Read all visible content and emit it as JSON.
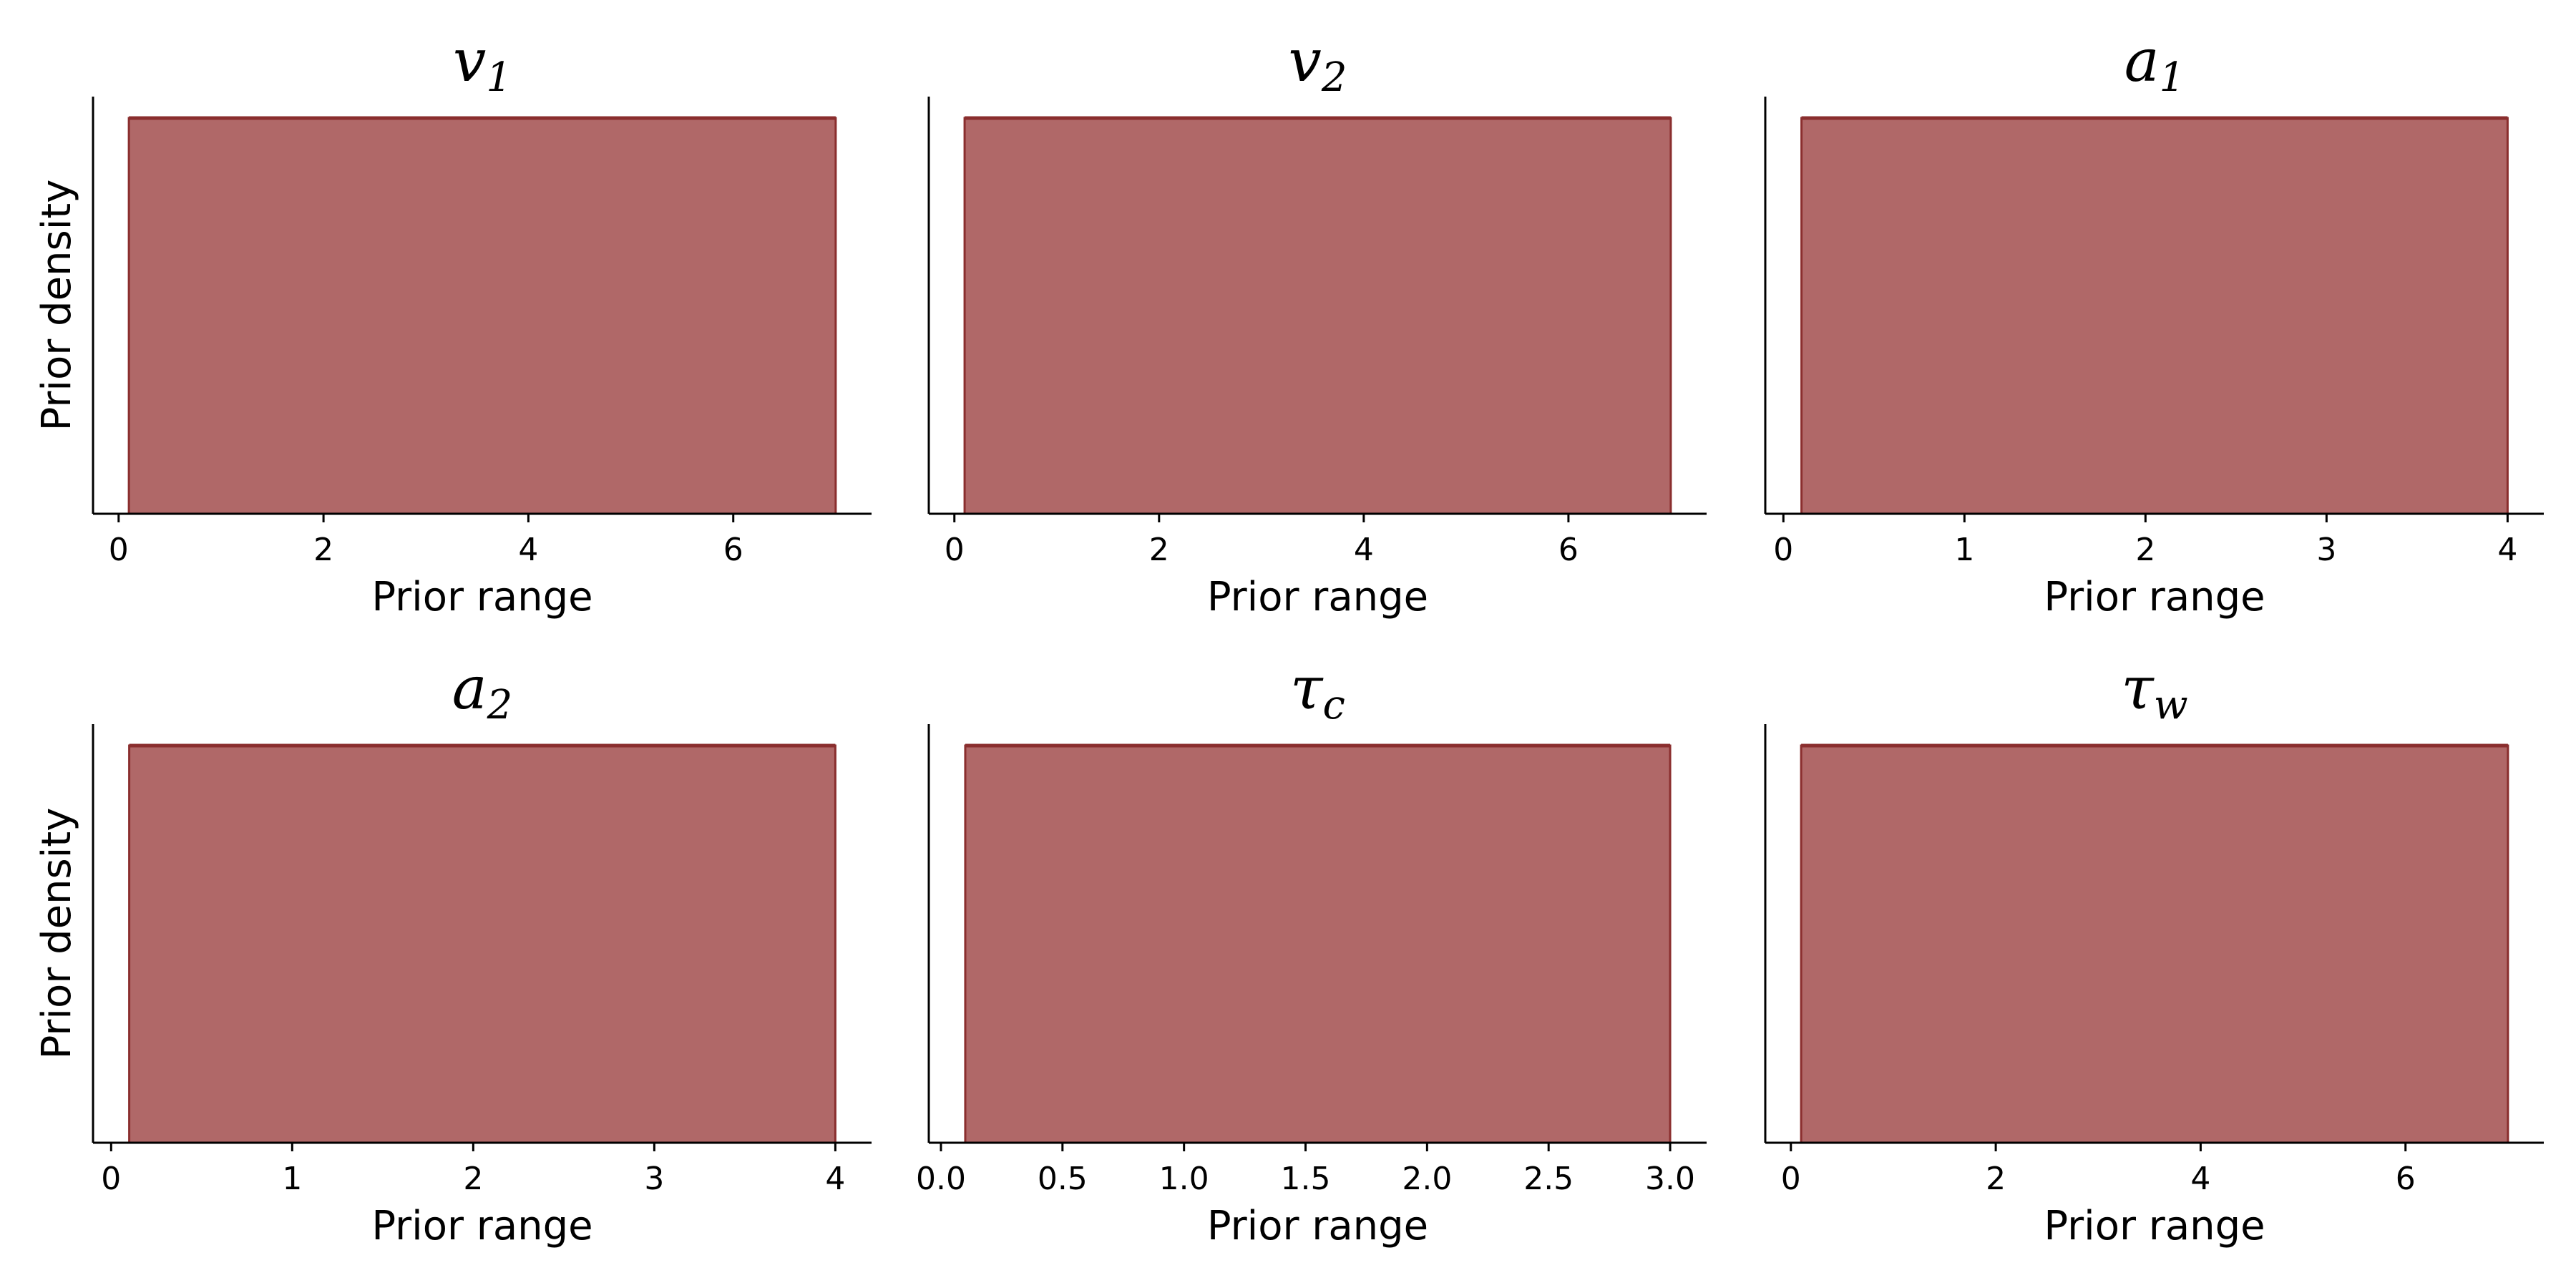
{
  "colors": {
    "fill": "#b06868",
    "edge": "#8a2e2e",
    "axis": "#000000"
  },
  "chart_data": [
    {
      "type": "area",
      "title_symbol": "v",
      "title_subscript": "1",
      "xlabel": "Prior range",
      "ylabel": "Prior density",
      "xlim": [
        -0.25,
        7.35
      ],
      "uniform_range": [
        0.1,
        7.0
      ],
      "xticks": [
        0,
        2,
        4,
        6
      ],
      "xtick_labels": [
        "0",
        "2",
        "4",
        "6"
      ],
      "yticks_visible": false
    },
    {
      "type": "area",
      "title_symbol": "v",
      "title_subscript": "2",
      "xlabel": "Prior range",
      "ylabel": "",
      "xlim": [
        -0.25,
        7.35
      ],
      "uniform_range": [
        0.1,
        7.0
      ],
      "xticks": [
        0,
        2,
        4,
        6
      ],
      "xtick_labels": [
        "0",
        "2",
        "4",
        "6"
      ],
      "yticks_visible": false
    },
    {
      "type": "area",
      "title_symbol": "a",
      "title_subscript": "1",
      "xlabel": "Prior range",
      "ylabel": "",
      "xlim": [
        -0.1,
        4.2
      ],
      "uniform_range": [
        0.1,
        4.0
      ],
      "xticks": [
        0,
        1,
        2,
        3,
        4
      ],
      "xtick_labels": [
        "0",
        "1",
        "2",
        "3",
        "4"
      ],
      "yticks_visible": false
    },
    {
      "type": "area",
      "title_symbol": "a",
      "title_subscript": "2",
      "xlabel": "Prior range",
      "ylabel": "Prior density",
      "xlim": [
        -0.1,
        4.2
      ],
      "uniform_range": [
        0.1,
        4.0
      ],
      "xticks": [
        0,
        1,
        2,
        3,
        4
      ],
      "xtick_labels": [
        "0",
        "1",
        "2",
        "3",
        "4"
      ],
      "yticks_visible": false
    },
    {
      "type": "area",
      "title_symbol": "τ",
      "title_subscript": "c",
      "xlabel": "Prior range",
      "ylabel": "",
      "xlim": [
        -0.05,
        3.15
      ],
      "uniform_range": [
        0.1,
        3.0
      ],
      "xticks": [
        0.0,
        0.5,
        1.0,
        1.5,
        2.0,
        2.5,
        3.0
      ],
      "xtick_labels": [
        "0.0",
        "0.5",
        "1.0",
        "1.5",
        "2.0",
        "2.5",
        "3.0"
      ],
      "yticks_visible": false
    },
    {
      "type": "area",
      "title_symbol": "τ",
      "title_subscript": "w",
      "xlabel": "Prior range",
      "ylabel": "",
      "xlim": [
        -0.25,
        7.35
      ],
      "uniform_range": [
        0.1,
        7.0
      ],
      "xticks": [
        0,
        2,
        4,
        6
      ],
      "xtick_labels": [
        "0",
        "2",
        "4",
        "6"
      ],
      "yticks_visible": false
    }
  ]
}
